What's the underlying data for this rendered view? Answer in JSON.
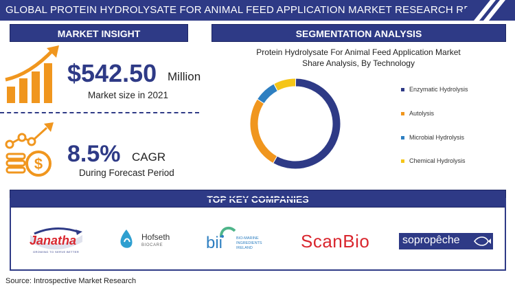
{
  "title": "GLOBAL PROTEIN HYDROLYSATE FOR ANIMAL FEED APPLICATION MARKET RESEARCH REPORT",
  "market_insight": {
    "heading": "MARKET INSIGHT",
    "market_size": "$542.50",
    "market_size_unit": "Million",
    "market_size_label": "Market size in 2021",
    "cagr": "8.5%",
    "cagr_label": "CAGR",
    "cagr_sub": "During Forecast Period"
  },
  "segmentation": {
    "heading": "SEGMENTATION ANALYSIS",
    "chart_title_line1": "Protein Hydrolysate For Animal Feed Application Market",
    "chart_title_line2": "Share Analysis, By Technology"
  },
  "chart_data": {
    "type": "pie",
    "title": "Protein Hydrolysate For Animal Feed Application Market Share Analysis, By Technology",
    "donut": true,
    "categories": [
      "Enzymatic Hydrolysis",
      "Autolysis",
      "Microbial Hydrolysis",
      "Chemical Hydrolysis"
    ],
    "values": [
      58,
      26,
      8,
      8
    ],
    "colors": [
      "#2e3a86",
      "#f0961e",
      "#2e7fc1",
      "#f5c518"
    ],
    "legend_position": "right"
  },
  "companies": {
    "heading": "TOP KEY COMPANIES",
    "janatha": "Janatha",
    "janatha_tag": "GROWING TO SERVE BETTER",
    "hofseth": "Hofseth",
    "hofseth_sub": "BIOCARE",
    "bii": "bii",
    "bii_text": [
      "BIO-MARINE",
      "INGREDIENTS",
      "IRELAND"
    ],
    "scanbio": "ScanBio",
    "sopropeche": "sopropêche"
  },
  "source": "Source: Introspective Market Research",
  "colors": {
    "navy": "#2e3a86",
    "orange": "#f0961e",
    "red": "#d9262e"
  }
}
